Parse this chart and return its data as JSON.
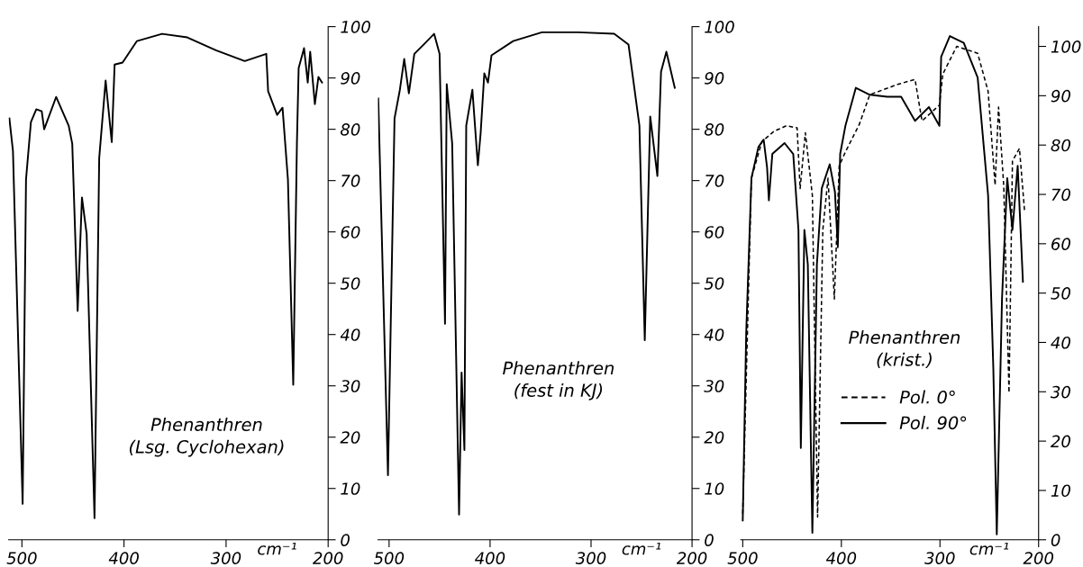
{
  "chart_data": [
    {
      "type": "line",
      "xlabel": "cm⁻¹",
      "annotations": [
        "Phenanthren\n(Lsg. Cyclohexan)"
      ],
      "xlim": [
        513,
        200
      ],
      "xticks": [
        500,
        400,
        300,
        200
      ],
      "ylim": [
        0,
        100
      ],
      "yticks": [
        0,
        10,
        20,
        30,
        40,
        50,
        60,
        70,
        80,
        90,
        100
      ],
      "grid": false,
      "legend": false,
      "marker": "none",
      "series": [
        {
          "color": "#000000",
          "line_style": "solid",
          "x": [
            512.3,
            508.8,
            499.3,
            496,
            491.2,
            485.9,
            480.6,
            478.2,
            466.5,
            454.2,
            450.7,
            445.4,
            441.2,
            436.6,
            428.9,
            424.3,
            418,
            412,
            409.2,
            401.4,
            387.3,
            362.7,
            338,
            309.9,
            281.7,
            260.6,
            258.8,
            250,
            244.7,
            239.4,
            234.2,
            230.6,
            228.9,
            223.6,
            220,
            217.6,
            213,
            209.5,
            206
          ],
          "values": [
            82.1,
            75.8,
            7.0,
            70.2,
            81.4,
            83.9,
            83.5,
            80,
            86.3,
            80.7,
            77.2,
            44.6,
            66.7,
            59.6,
            4.2,
            74.4,
            89.5,
            77.5,
            92.6,
            93,
            97.2,
            98.6,
            97.9,
            95.4,
            93.3,
            94.7,
            87.4,
            82.8,
            84.2,
            70.2,
            30.2,
            77.2,
            91.9,
            95.8,
            89.1,
            95.1,
            84.9,
            90.2,
            89.1
          ]
        }
      ]
    },
    {
      "type": "line",
      "xlabel": "cm⁻¹",
      "annotations": [
        "Phenanthren\n(fest in KJ)"
      ],
      "xlim": [
        511,
        200
      ],
      "xticks": [
        500,
        400,
        300,
        200
      ],
      "ylim": [
        0,
        100
      ],
      "yticks": [
        0,
        10,
        20,
        30,
        40,
        50,
        60,
        70,
        80,
        90,
        100
      ],
      "grid": false,
      "legend": false,
      "marker": "none",
      "series": [
        {
          "color": "#000000",
          "line_style": "solid",
          "x": [
            510.7,
            501.1,
            494.6,
            489.3,
            485,
            480.4,
            475,
            464.3,
            455.4,
            450,
            444.6,
            442.9,
            437.5,
            430.7,
            428.2,
            425.4,
            423.6,
            417.5,
            412.1,
            409.3,
            405.7,
            402.1,
            398.6,
            377.1,
            348.6,
            312.9,
            277.1,
            262.9,
            252.1,
            246.8,
            241.4,
            234.3,
            230.7,
            225.4,
            217.1
          ],
          "values": [
            86,
            12.6,
            82.1,
            87.7,
            93.7,
            87,
            94.7,
            96.8,
            98.6,
            94.7,
            42.1,
            88.8,
            77.2,
            4.9,
            32.6,
            17.5,
            80.7,
            87.7,
            73,
            79.3,
            90.9,
            89.1,
            94.4,
            97.2,
            98.9,
            98.9,
            98.6,
            96.5,
            80.7,
            38.9,
            82.5,
            70.9,
            91.2,
            95.1,
            88.1
          ]
        }
      ]
    },
    {
      "type": "line",
      "xlabel": "cm⁻¹",
      "annotations": [
        "Phenanthren\n(krist.)"
      ],
      "xlim": [
        502,
        200
      ],
      "xticks": [
        500,
        400,
        300,
        200
      ],
      "ylim": [
        0,
        104
      ],
      "yticks": [
        0,
        10,
        20,
        30,
        40,
        50,
        60,
        70,
        80,
        90,
        100
      ],
      "grid": false,
      "legend": "center",
      "marker": "none",
      "series": [
        {
          "name": "Pol. 0°",
          "color": "#000000",
          "line_style": "dashed",
          "x": [
            500,
            491.2,
            480.6,
            468.2,
            455.9,
            444.9,
            441.8,
            436.5,
            429.4,
            424.1,
            418.8,
            413.5,
            407.1,
            402.2,
            395.9,
            381.8,
            371.2,
            342.9,
            325.3,
            318.2,
            300.6,
            297.1,
            283,
            261.8,
            251.2,
            244.1,
            240.6,
            235.3,
            230,
            226.5,
            219.4,
            214.1
          ],
          "values": [
            5.3,
            73.3,
            80.7,
            82.8,
            83.9,
            83.5,
            71.2,
            82.5,
            69.8,
            4.6,
            62.8,
            73.3,
            48.8,
            75.8,
            78.6,
            84.2,
            90.2,
            92.3,
            93.3,
            84.9,
            88.1,
            94.4,
            100,
            98.6,
            90.9,
            71.9,
            87.7,
            71.6,
            29.8,
            76.8,
            79.3,
            66.3
          ]
        },
        {
          "name": "Pol. 90°",
          "color": "#000000",
          "line_style": "solid",
          "x": [
            500,
            496.5,
            491.2,
            484.1,
            478.8,
            475.3,
            473.5,
            470,
            457.6,
            448.8,
            443.5,
            441.1,
            437.5,
            434,
            429.4,
            424.8,
            419.9,
            411.8,
            406.5,
            403.6,
            401.2,
            395.9,
            385.3,
            371.2,
            353.5,
            339.4,
            325.3,
            311.2,
            300.6,
            298.8,
            290,
            275.9,
            261.8,
            251.2,
            245.9,
            242.4,
            237.1,
            231.8,
            226.5,
            221.2,
            215.9
          ],
          "values": [
            3.9,
            41.8,
            73.3,
            79.6,
            81.1,
            75.4,
            68.8,
            78.2,
            80.4,
            78.2,
            62.8,
            18.6,
            62.8,
            55.8,
            1.4,
            55.8,
            71.2,
            76.1,
            70.5,
            59.3,
            78.2,
            83.9,
            91.6,
            90.2,
            89.8,
            89.8,
            84.9,
            87.7,
            83.9,
            97.9,
            102.1,
            100.7,
            93.7,
            69.8,
            34.7,
            1.1,
            48.8,
            73.3,
            62.8,
            75.8,
            52.3
          ]
        }
      ]
    }
  ]
}
